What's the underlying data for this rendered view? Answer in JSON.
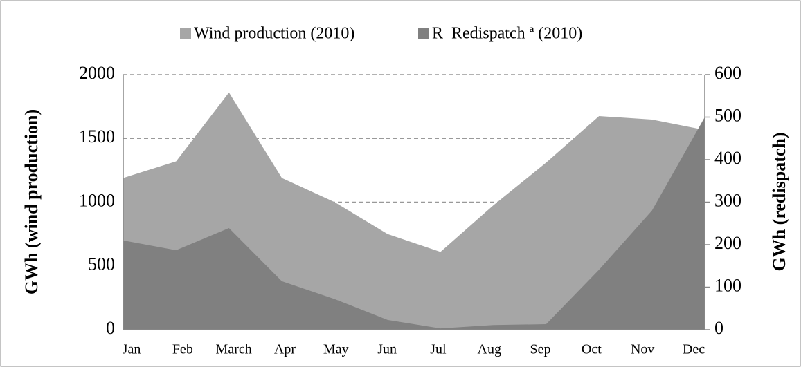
{
  "chart_data": {
    "type": "area",
    "categories": [
      "Jan",
      "Feb",
      "March",
      "Apr",
      "May",
      "Jun",
      "Jul",
      "Aug",
      "Sep",
      "Oct",
      "Nov",
      "Dec"
    ],
    "series": [
      {
        "name": "Wind production (2010)",
        "color": "#a6a6a6",
        "values": [
          1190,
          1320,
          1860,
          1190,
          1000,
          750,
          610,
          975,
          1310,
          1675,
          1648,
          1566
        ]
      },
      {
        "name": "R  Redispatch ª (2010)",
        "color": "#808080",
        "axis": "y2",
        "values": [
          210,
          187,
          239,
          114,
          72,
          23,
          3,
          11,
          13,
          141,
          280,
          500
        ]
      }
    ],
    "y_label": "GWh (wind production)",
    "y2_label": "GWh (redispatch)",
    "ylim": [
      0,
      2000
    ],
    "yticks": [
      0,
      500,
      1000,
      1500,
      2000
    ],
    "y2lim": [
      0,
      600
    ],
    "y2ticks": [
      0,
      100,
      200,
      300,
      400,
      500,
      600
    ],
    "grid": true
  }
}
